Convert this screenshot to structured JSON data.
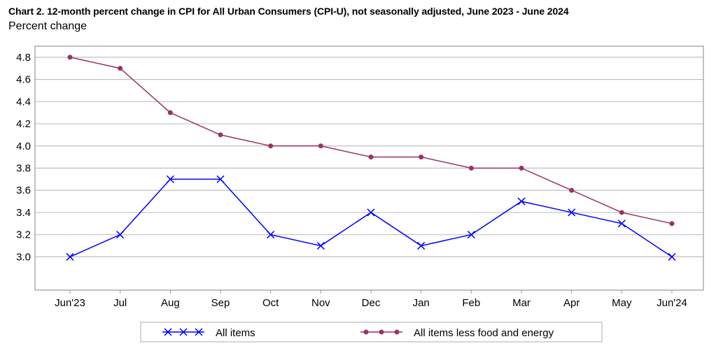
{
  "chart_data": {
    "type": "line",
    "title": "Chart 2. 12-month percent change in CPI for All Urban Consumers (CPI-U), not seasonally adjusted, June 2023 - June 2024",
    "ylabel": "Percent change",
    "xlabel": "",
    "categories": [
      "Jun'23",
      "Jul",
      "Aug",
      "Sep",
      "Oct",
      "Nov",
      "Dec",
      "Jan",
      "Feb",
      "Mar",
      "Apr",
      "May",
      "Jun'24"
    ],
    "yticks": [
      "4.8",
      "4.6",
      "4.4",
      "4.2",
      "4.0",
      "3.8",
      "3.6",
      "3.4",
      "3.2",
      "3.0"
    ],
    "ylim": [
      2.7,
      4.9
    ],
    "grid": true,
    "legend_position": "bottom",
    "series": [
      {
        "name": "All items",
        "color": "#0000ff",
        "marker": "x",
        "values": [
          3.0,
          3.2,
          3.7,
          3.7,
          3.2,
          3.1,
          3.4,
          3.1,
          3.2,
          3.5,
          3.4,
          3.3,
          3.0
        ]
      },
      {
        "name": "All items less food and energy",
        "color": "#993366",
        "marker": "circle",
        "values": [
          4.8,
          4.7,
          4.3,
          4.1,
          4.0,
          4.0,
          3.9,
          3.9,
          3.8,
          3.8,
          3.6,
          3.4,
          3.3
        ]
      }
    ]
  }
}
